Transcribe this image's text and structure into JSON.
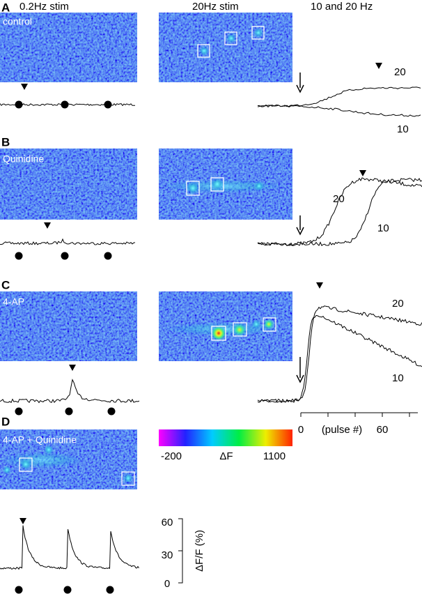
{
  "headers": [
    "0.2Hz stim",
    "20Hz stim",
    "10 and 20 Hz"
  ],
  "panels": [
    {
      "letter": "A",
      "label": "control",
      "right_labels": [
        "20",
        "10"
      ]
    },
    {
      "letter": "B",
      "label": "Quinidine",
      "right_labels": [
        "20",
        "10"
      ]
    },
    {
      "letter": "C",
      "label": "4-AP",
      "right_labels": [
        "20",
        "10"
      ]
    },
    {
      "letter": "D",
      "label": "4-AP + Quinidine"
    }
  ],
  "pulse_axis": {
    "label": "(pulse #)",
    "ticks": [
      "0",
      "60"
    ]
  },
  "colorbar": {
    "min": "-200",
    "label": "ΔF",
    "max": "1100"
  },
  "scale_bar": {
    "label": "ΔF/F (%)",
    "ticks": [
      "60",
      "30",
      "0"
    ]
  }
}
